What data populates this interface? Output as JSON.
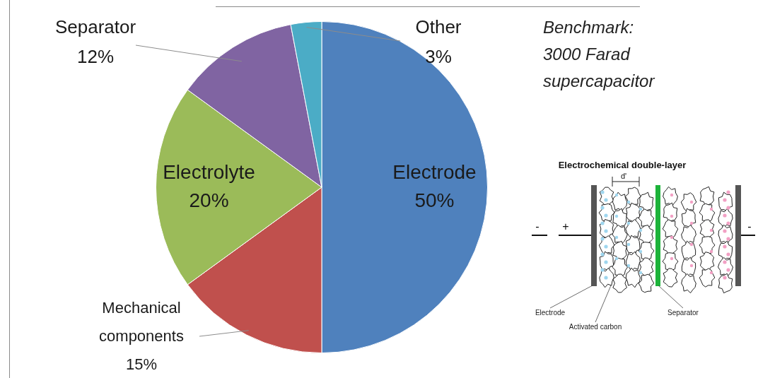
{
  "chart_data": {
    "type": "pie",
    "categories": [
      "Electrode",
      "Mechanical components",
      "Electrolyte",
      "Separator",
      "Other"
    ],
    "values": [
      50,
      15,
      20,
      12,
      3
    ],
    "value_labels": [
      "50%",
      "15%",
      "20%",
      "12%",
      "3%"
    ],
    "colors": [
      "#4f81bd",
      "#c0504d",
      "#9bbb59",
      "#8064a2",
      "#4bacc6"
    ],
    "data_labels": true,
    "annotation": [
      "Benchmark:",
      "3000 Farad",
      "supercapacitor"
    ]
  },
  "diagram": {
    "title": "Electrochemical double-layer",
    "distance_label": "d'",
    "labels": [
      "Electrode",
      "Activated carbon",
      "Separator"
    ],
    "terminals": [
      "-",
      "+",
      "-"
    ]
  }
}
